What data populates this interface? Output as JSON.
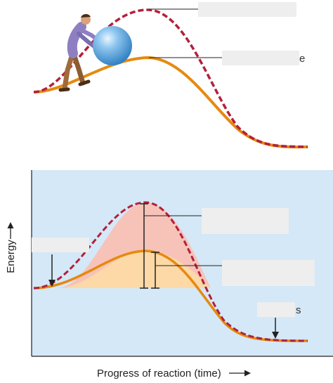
{
  "colors": {
    "panel_fill": "#d4e8f7",
    "uncatalyzed": "#b3203b",
    "catalyzed": "#e58a10",
    "uncatalyzed_area": "#f7c3b8",
    "catalyzed_area": "#fcd9a6",
    "label_box": "#eeeeee",
    "ink": "#222222",
    "ball": "#5aa7dd"
  },
  "icons": {
    "person": "person-pushing-icon",
    "ball": "boulder-sphere-icon"
  },
  "axes": {
    "y_label": "Energy",
    "x_label": "Progress of reaction (time)"
  },
  "label_boxes": [
    {
      "id": "top-peak-label",
      "text": ""
    },
    {
      "id": "top-hill-label",
      "text": ""
    },
    {
      "id": "left-reactants-label",
      "text": ""
    },
    {
      "id": "uncatalyzed-activation-label",
      "text": ""
    },
    {
      "id": "catalyzed-activation-label",
      "text": ""
    },
    {
      "id": "products-label",
      "text": ""
    }
  ],
  "visible_fragments": {
    "top_hill_tail": "e",
    "products_tail": "s"
  }
}
